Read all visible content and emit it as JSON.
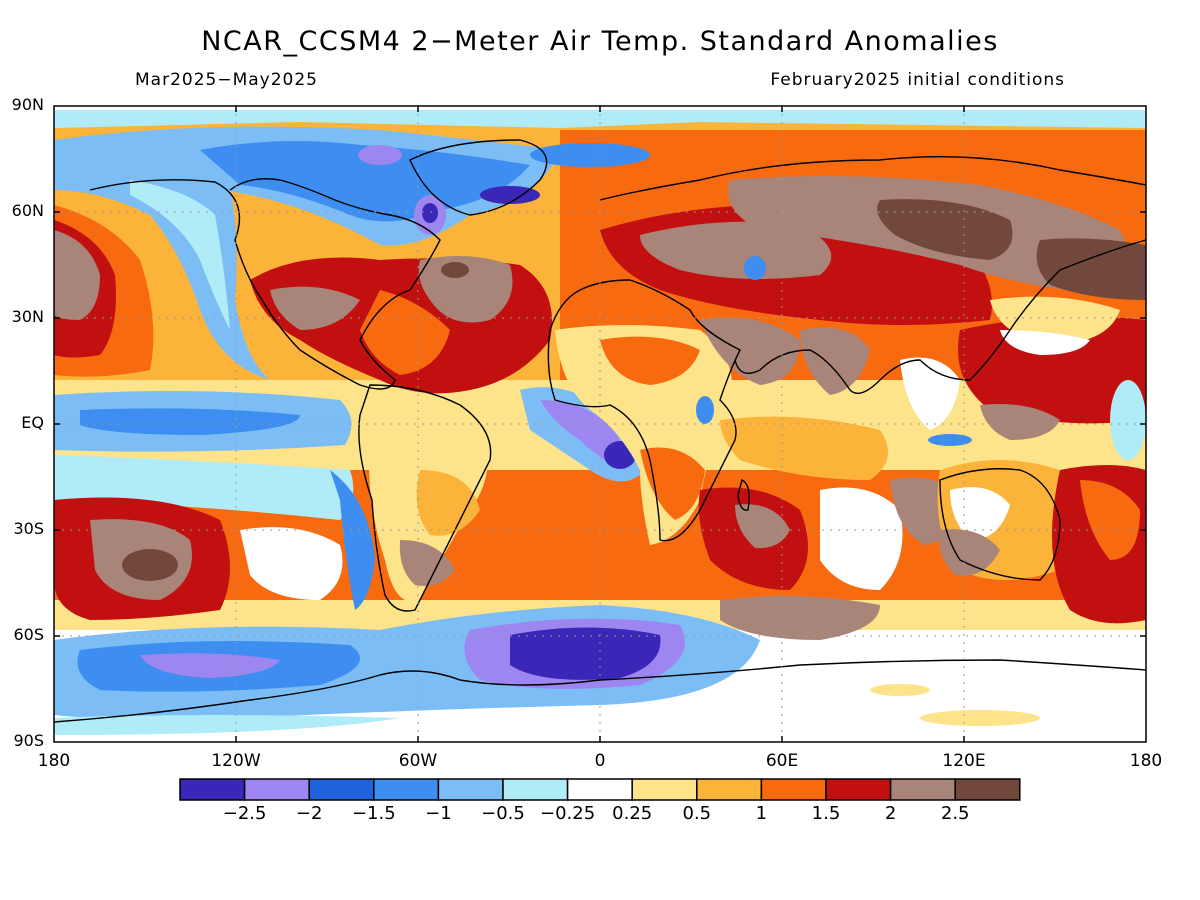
{
  "title": "NCAR_CCSM4 2−Meter Air Temp. Standard Anomalies",
  "valid_period": "Mar2025−May2025",
  "init_conditions": "February2025 initial conditions",
  "y_ticks": [
    "90N",
    "60N",
    "30N",
    "EQ",
    "30S",
    "60S",
    "90S"
  ],
  "x_ticks": [
    "180",
    "120W",
    "60W",
    "0",
    "60E",
    "120E",
    "180"
  ],
  "colorbar": {
    "labels": [
      "−2.5",
      "−2",
      "−1.5",
      "−1",
      "−0.5",
      "−0.25",
      "0.25",
      "0.5",
      "1",
      "1.5",
      "2",
      "2.5"
    ],
    "colors": [
      "#3a27b8",
      "#9e86f0",
      "#1f62dc",
      "#3d8ef0",
      "#7dbdf5",
      "#b0ecf7",
      "#ffffff",
      "#fde38a",
      "#fcb33a",
      "#f86a10",
      "#c20f0f",
      "#a98478",
      "#72483c"
    ]
  },
  "map_colors": {
    "ocean_neutral": "#ffffff",
    "coast": "#000000",
    "grid": "#9a9a9a"
  }
}
